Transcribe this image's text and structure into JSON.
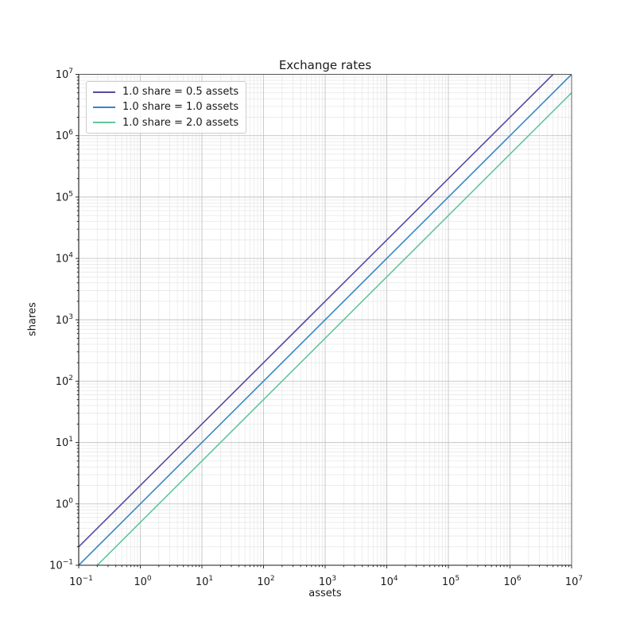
{
  "figure": {
    "background": "#ffffff",
    "text_color": "#1a1a1a"
  },
  "chart_data": {
    "type": "line",
    "title": "Exchange rates",
    "xlabel": "assets",
    "ylabel": "shares",
    "xscale": "log",
    "yscale": "log",
    "xlim": [
      0.1,
      10000000
    ],
    "ylim": [
      0.1,
      10000000
    ],
    "x_tick_exponents": [
      -1,
      0,
      1,
      2,
      3,
      4,
      5,
      6,
      7
    ],
    "y_tick_exponents": [
      -1,
      0,
      1,
      2,
      3,
      4,
      5,
      6,
      7
    ],
    "x_tick_labels": [
      "10^-1",
      "10^0",
      "10^1",
      "10^2",
      "10^3",
      "10^4",
      "10^5",
      "10^6",
      "10^7"
    ],
    "y_tick_labels": [
      "10^-1",
      "10^0",
      "10^1",
      "10^2",
      "10^3",
      "10^4",
      "10^5",
      "10^6",
      "10^7"
    ],
    "grid": {
      "major": true,
      "minor": true,
      "major_color": "#c4c4c4",
      "minor_color": "#e8e8e8"
    },
    "legend_position": "upper left",
    "series": [
      {
        "name": "1.0 share = 0.5 assets",
        "color": "#554c9f",
        "rate_assets_per_share": 0.5,
        "points": [
          [
            0.1,
            0.2
          ],
          [
            5000000,
            10000000
          ]
        ]
      },
      {
        "name": "1.0 share = 1.0 assets",
        "color": "#3787c8",
        "rate_assets_per_share": 1.0,
        "points": [
          [
            0.1,
            0.1
          ],
          [
            10000000,
            10000000
          ]
        ]
      },
      {
        "name": "1.0 share = 2.0 assets",
        "color": "#62c69c",
        "rate_assets_per_share": 2.0,
        "points": [
          [
            0.2,
            0.1
          ],
          [
            10000000,
            5000000
          ]
        ]
      }
    ]
  }
}
